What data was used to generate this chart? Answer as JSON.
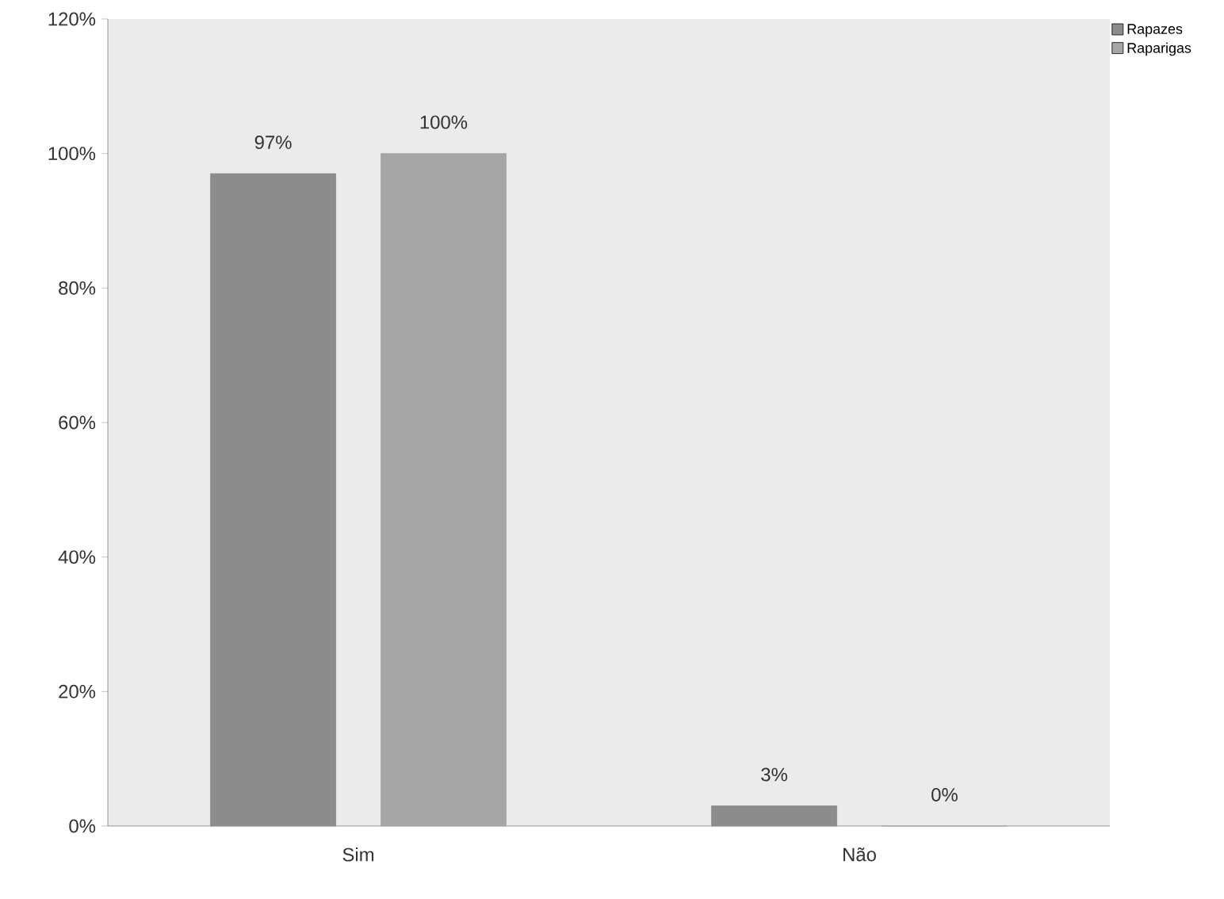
{
  "chart_data": {
    "type": "bar",
    "categories": [
      "Sim",
      "Não"
    ],
    "series": [
      {
        "name": "Rapazes",
        "color": "#8c8c8c",
        "values": [
          97,
          3
        ],
        "value_labels": [
          "97%",
          "3%"
        ]
      },
      {
        "name": "Raparigas",
        "color": "#a6a6a6",
        "values": [
          100,
          0
        ],
        "value_labels": [
          "100%",
          "0%"
        ]
      }
    ],
    "ylim": [
      0,
      120
    ],
    "yticks": [
      {
        "value": 0,
        "label": "0%"
      },
      {
        "value": 20,
        "label": "20%"
      },
      {
        "value": 40,
        "label": "40%"
      },
      {
        "value": 60,
        "label": "60%"
      },
      {
        "value": 80,
        "label": "80%"
      },
      {
        "value": 100,
        "label": "100%"
      },
      {
        "value": 120,
        "label": "120%"
      }
    ],
    "legend": "top right"
  }
}
